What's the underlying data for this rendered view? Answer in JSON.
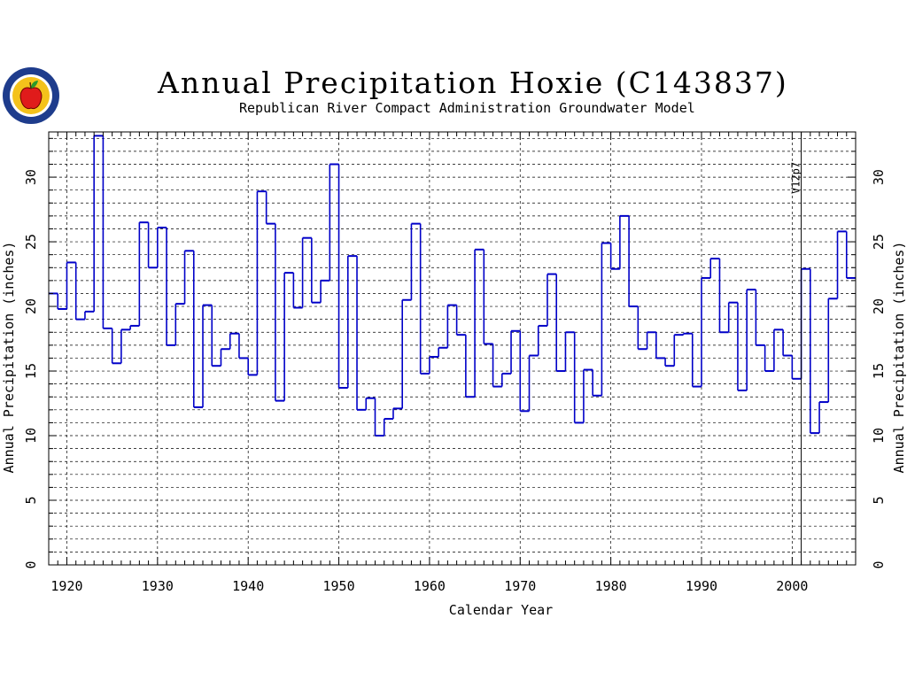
{
  "header": {
    "title": "Annual Precipitation Hoxie (C143837)",
    "subtitle": "Republican River Compact Administration Groundwater Model"
  },
  "logo": {
    "icon": "apple-seal-icon",
    "ring_color": "#1e3c8c",
    "fill_color": "#f4c21b",
    "apple_color": "#e01b1b"
  },
  "chart_data": {
    "type": "line",
    "style": "step",
    "title": "Annual Precipitation Hoxie (C143837)",
    "subtitle": "Republican River Compact Administration Groundwater Model",
    "xlabel": "Calendar Year",
    "ylabel": "Annual Precipitation (inches)",
    "ylabel_right": "Annual Precipitation (inches)",
    "xlim": [
      1918,
      2007
    ],
    "ylim": [
      0,
      33.5
    ],
    "xticks": [
      1920,
      1930,
      1940,
      1950,
      1960,
      1970,
      1980,
      1990,
      2000
    ],
    "yticks": [
      0,
      5,
      10,
      15,
      20,
      25,
      30
    ],
    "y_minor_step": 1,
    "grid": true,
    "line_color": "#0000c8",
    "annotation": {
      "text": "V12p7",
      "x": 2001
    },
    "series": [
      {
        "years": [
          1918,
          1919,
          1920,
          1921,
          1922,
          1923,
          1924,
          1925,
          1926,
          1927,
          1928,
          1929,
          1930,
          1931,
          1932,
          1933,
          1934,
          1935,
          1936,
          1937,
          1938,
          1939,
          1940,
          1941,
          1942,
          1943,
          1944,
          1945,
          1946,
          1947,
          1948,
          1949,
          1950,
          1951,
          1952,
          1953,
          1954,
          1955,
          1956,
          1957,
          1958,
          1959,
          1960,
          1961,
          1962,
          1963,
          1964,
          1965,
          1966,
          1967,
          1968,
          1969,
          1970,
          1971,
          1972,
          1973,
          1974,
          1975,
          1976,
          1977,
          1978,
          1979,
          1980,
          1981,
          1982,
          1983,
          1984,
          1985,
          1986,
          1987,
          1988,
          1989,
          1990,
          1991,
          1992,
          1993,
          1994,
          1995,
          1996,
          1997,
          1998,
          1999,
          2000,
          2001,
          2002,
          2003,
          2004,
          2005,
          2006
        ],
        "values": [
          21.0,
          19.8,
          23.4,
          19.0,
          19.6,
          33.2,
          18.3,
          15.6,
          18.2,
          18.5,
          26.5,
          23.0,
          26.1,
          17.0,
          20.2,
          24.3,
          12.2,
          20.1,
          15.4,
          16.7,
          17.9,
          16.0,
          14.7,
          28.9,
          26.4,
          12.7,
          22.6,
          19.9,
          25.3,
          20.3,
          22.0,
          31.0,
          13.7,
          23.9,
          12.0,
          12.9,
          10.0,
          11.3,
          12.1,
          20.5,
          26.4,
          14.8,
          16.1,
          16.8,
          20.1,
          17.8,
          13.0,
          24.4,
          17.1,
          13.8,
          14.8,
          18.1,
          11.9,
          16.2,
          18.5,
          22.5,
          15.0,
          18.0,
          11.0,
          15.1,
          13.1,
          24.9,
          22.9,
          27.0,
          20.0,
          16.7,
          18.0,
          16.0,
          15.4,
          17.8,
          17.9,
          13.8,
          22.2,
          23.7,
          18.0,
          20.3,
          13.5,
          21.3,
          17.0,
          15.0,
          18.2,
          16.2,
          14.4,
          22.9,
          10.2,
          12.6,
          20.6,
          25.8,
          22.2
        ]
      }
    ]
  }
}
